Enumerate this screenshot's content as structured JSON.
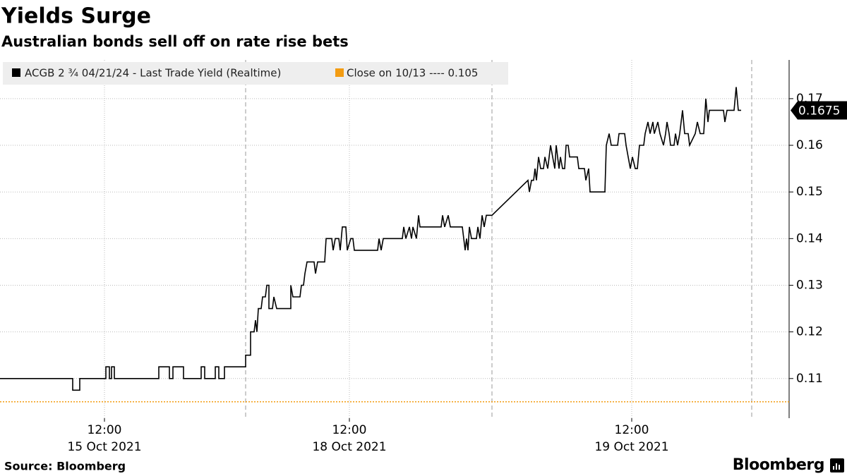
{
  "chart_data": {
    "type": "line",
    "title": "Yields Surge",
    "subtitle": "Australian bonds sell off on rate rise bets",
    "source": "Source: Bloomberg",
    "brand": "Bloomberg",
    "xlim": [
      0,
      1118
    ],
    "ylim": [
      0.1015,
      0.1783
    ],
    "yticks": [
      0.11,
      0.12,
      0.13,
      0.14,
      0.15,
      0.16,
      0.17
    ],
    "xticks": [
      {
        "value": 148,
        "label": "12:00"
      },
      {
        "value": 495,
        "label": "12:00"
      },
      {
        "value": 895,
        "label": "12:00"
      }
    ],
    "xtick_dates": [
      "15 Oct 2021",
      "18 Oct 2021",
      "19 Oct 2021"
    ],
    "session_breaks": [
      348,
      697,
      1065
    ],
    "grid": true,
    "last_value": 0.1675,
    "series": [
      {
        "name": "ACGB 2 ¾ 04/21/24 - Last Trade Yield (Realtime)",
        "color": "#000000",
        "x": [
          0,
          103,
          103,
          113,
          113,
          150,
          150,
          155,
          155,
          158,
          158,
          162,
          162,
          225,
          225,
          240,
          240,
          245,
          245,
          260,
          260,
          285,
          285,
          290,
          290,
          305,
          305,
          310,
          310,
          318,
          318,
          348,
          348,
          355,
          355,
          360,
          362,
          364,
          366,
          370,
          372,
          376,
          378,
          381,
          381,
          386,
          388,
          392,
          412,
          412,
          415,
          425,
          427,
          430,
          432,
          435,
          445,
          447,
          450,
          460,
          462,
          470,
          472,
          475,
          480,
          482,
          485,
          490,
          492,
          497,
          500,
          502,
          535,
          537,
          540,
          543,
          570,
          572,
          575,
          580,
          583,
          585,
          590,
          593,
          595,
          625,
          627,
          630,
          635,
          638,
          655,
          657,
          659,
          661,
          663,
          665,
          668,
          675,
          677,
          680,
          683,
          686,
          689,
          697,
          748,
          750,
          753,
          756,
          758,
          760,
          763,
          766,
          770,
          772,
          776,
          780,
          783,
          786,
          788,
          790,
          792,
          794,
          797,
          800,
          802,
          805,
          807,
          818,
          820,
          828,
          830,
          834,
          836,
          857,
          859,
          863,
          866,
          875,
          877,
          885,
          887,
          890,
          893,
          896,
          900,
          903,
          906,
          912,
          914,
          918,
          921,
          925,
          927,
          932,
          935,
          940,
          943,
          945,
          948,
          950,
          955,
          957,
          960,
          963,
          967,
          970,
          975,
          977,
          985,
          988,
          992,
          997,
          1000,
          1003,
          1005,
          1025,
          1027,
          1030,
          1040,
          1043,
          1046,
          1050
        ],
        "values": [
          0.11,
          0.11,
          0.1075,
          0.1075,
          0.11,
          0.11,
          0.1125,
          0.1125,
          0.11,
          0.11,
          0.1125,
          0.1125,
          0.11,
          0.11,
          0.1125,
          0.1125,
          0.11,
          0.11,
          0.1125,
          0.1125,
          0.11,
          0.11,
          0.1125,
          0.1125,
          0.11,
          0.11,
          0.1125,
          0.1125,
          0.11,
          0.11,
          0.1125,
          0.1125,
          0.115,
          0.115,
          0.12,
          0.12,
          0.1225,
          0.12,
          0.125,
          0.125,
          0.1275,
          0.1275,
          0.13,
          0.13,
          0.125,
          0.125,
          0.1275,
          0.125,
          0.125,
          0.13,
          0.1275,
          0.1275,
          0.13,
          0.13,
          0.1325,
          0.135,
          0.135,
          0.1325,
          0.135,
          0.135,
          0.14,
          0.14,
          0.1375,
          0.14,
          0.14,
          0.1375,
          0.1425,
          0.1425,
          0.1375,
          0.14,
          0.14,
          0.1375,
          0.1375,
          0.14,
          0.1375,
          0.14,
          0.14,
          0.1425,
          0.14,
          0.1425,
          0.14,
          0.1425,
          0.14,
          0.145,
          0.1425,
          0.1425,
          0.145,
          0.1425,
          0.145,
          0.1425,
          0.1425,
          0.14,
          0.1375,
          0.14,
          0.1375,
          0.1425,
          0.14,
          0.14,
          0.1425,
          0.14,
          0.145,
          0.1425,
          0.145,
          0.145,
          0.1525,
          0.15,
          0.1525,
          0.1525,
          0.155,
          0.1525,
          0.1575,
          0.155,
          0.155,
          0.1575,
          0.155,
          0.16,
          0.1575,
          0.155,
          0.16,
          0.1575,
          0.155,
          0.1575,
          0.155,
          0.155,
          0.16,
          0.16,
          0.1575,
          0.1575,
          0.155,
          0.155,
          0.1525,
          0.155,
          0.15,
          0.15,
          0.16,
          0.1625,
          0.16,
          0.16,
          0.1625,
          0.1625,
          0.16,
          0.1575,
          0.155,
          0.1575,
          0.155,
          0.155,
          0.16,
          0.16,
          0.1625,
          0.165,
          0.1625,
          0.165,
          0.1625,
          0.165,
          0.1625,
          0.16,
          0.1625,
          0.165,
          0.1625,
          0.16,
          0.16,
          0.1625,
          0.16,
          0.1625,
          0.1675,
          0.1625,
          0.1625,
          0.16,
          0.1625,
          0.165,
          0.1625,
          0.1625,
          0.17,
          0.165,
          0.1675,
          0.1675,
          0.165,
          0.1675,
          0.1675,
          0.1725,
          0.1675,
          0.1675
        ]
      },
      {
        "name": "Close on 10/13 ---- 0.105",
        "color": "#f39c12",
        "x": [
          0,
          1118
        ],
        "values": [
          0.105,
          0.105
        ]
      }
    ]
  }
}
